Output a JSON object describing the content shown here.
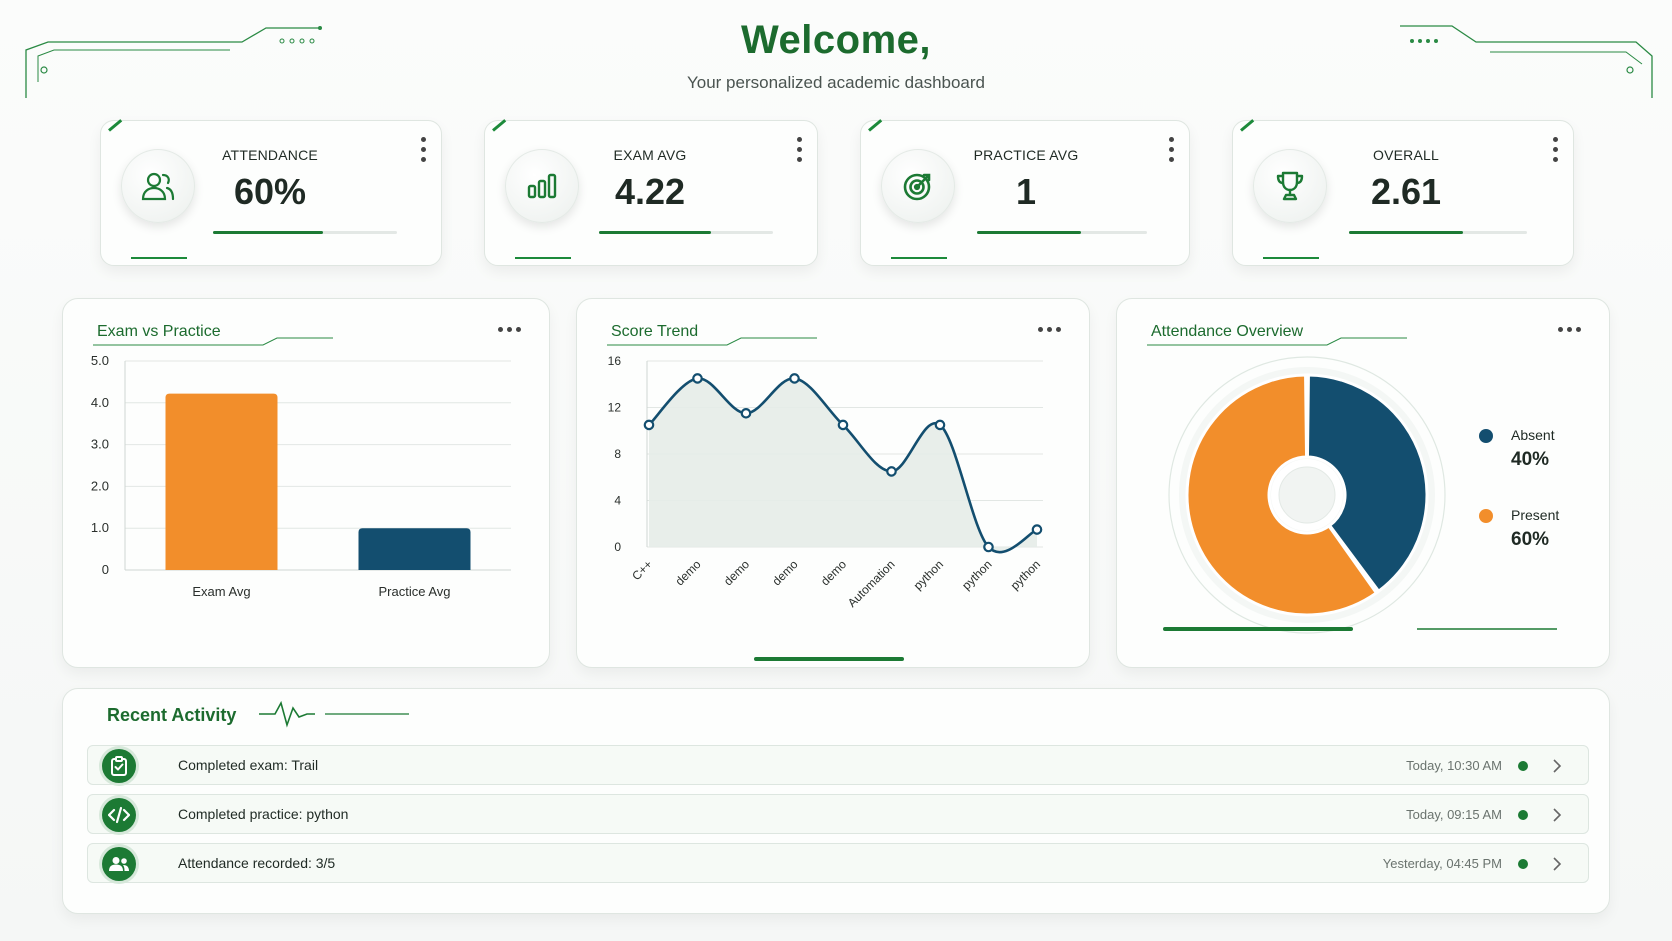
{
  "header": {
    "title": "Welcome,",
    "subtitle": "Your personalized academic dashboard"
  },
  "colors": {
    "brand_green": "#1c6b2e",
    "accent_green": "#1c7a34",
    "orange": "#f28e2b",
    "navy": "#134e6f"
  },
  "stats": [
    {
      "label": "ATTENDANCE",
      "value": "60%",
      "icon": "users-icon",
      "progress": 0.6
    },
    {
      "label": "EXAM AVG",
      "value": "4.22",
      "icon": "bar-chart-icon",
      "progress": 0.65
    },
    {
      "label": "PRACTICE AVG",
      "value": "1",
      "icon": "target-icon",
      "progress": 0.6
    },
    {
      "label": "OVERALL",
      "value": "2.61",
      "icon": "trophy-icon",
      "progress": 0.64
    }
  ],
  "panels": {
    "exam_vs_practice": "Exam vs Practice",
    "score_trend": "Score Trend",
    "attendance_overview": "Attendance Overview"
  },
  "chart_data": [
    {
      "type": "bar",
      "title": "Exam vs Practice",
      "categories": [
        "Exam Avg",
        "Practice Avg"
      ],
      "values": [
        4.22,
        1.0
      ],
      "yticks": [
        "0",
        "1.0",
        "2.0",
        "3.0",
        "4.0",
        "5.0"
      ],
      "ylim": [
        0,
        5
      ],
      "colors": [
        "#f28e2b",
        "#134e6f"
      ],
      "grid": true
    },
    {
      "type": "area",
      "title": "Score Trend",
      "categories": [
        "C++",
        "demo",
        "demo",
        "demo",
        "demo",
        "Automation",
        "python",
        "python",
        "python"
      ],
      "values": [
        10.5,
        14.5,
        11.5,
        14.5,
        10.5,
        6.5,
        10.5,
        0,
        1.5
      ],
      "yticks": [
        "0",
        "4",
        "8",
        "12",
        "16"
      ],
      "ylim": [
        0,
        16
      ],
      "line_color": "#134e6f",
      "grid": true
    },
    {
      "type": "pie",
      "title": "Attendance Overview",
      "slices": [
        {
          "label": "Absent",
          "value": 40,
          "display": "40%",
          "color": "#134e6f"
        },
        {
          "label": "Present",
          "value": 60,
          "display": "60%",
          "color": "#f28e2b"
        }
      ],
      "legend": "right"
    }
  ],
  "activity": {
    "title": "Recent Activity",
    "items": [
      {
        "text": "Completed exam: Trail",
        "time": "Today, 10:30 AM",
        "icon": "clipboard-check-icon"
      },
      {
        "text": "Completed practice: python",
        "time": "Today, 09:15 AM",
        "icon": "code-icon"
      },
      {
        "text": "Attendance recorded: 3/5",
        "time": "Yesterday, 04:45 PM",
        "icon": "users-icon"
      }
    ]
  }
}
